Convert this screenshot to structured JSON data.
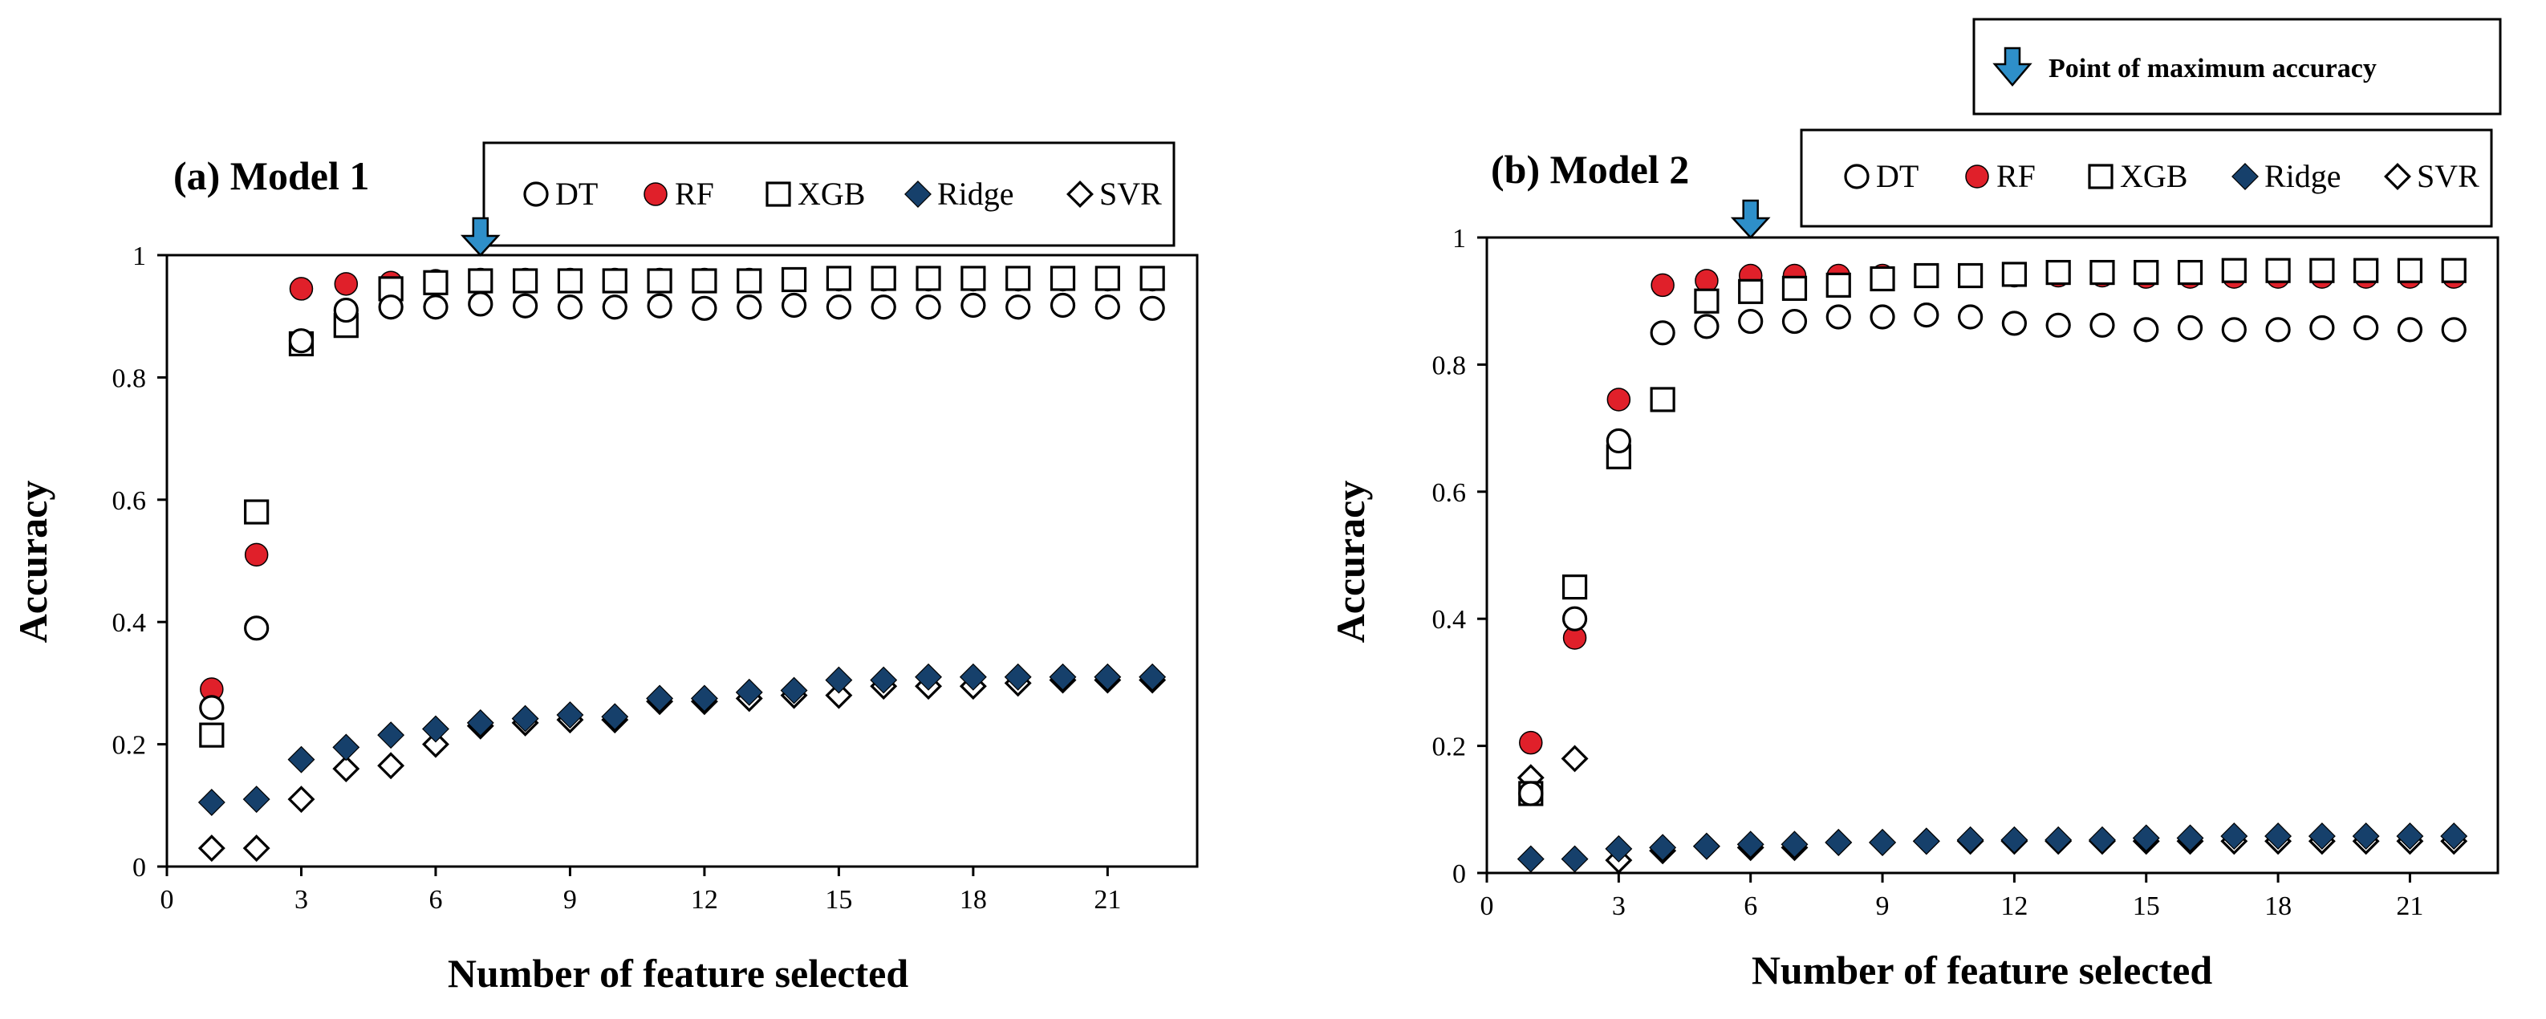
{
  "colors": {
    "rf_fill": "#e0202a",
    "ridge_fill": "#16406b",
    "arrow_fill": "#2e8fc9",
    "axis": "#000000",
    "marker_stroke": "#000000"
  },
  "global_legend": {
    "label": "Point of maximum accuracy",
    "icon": "down-arrow-icon"
  },
  "chart_data": [
    {
      "type": "scatter",
      "title": "(a) Model 1",
      "xlabel": "Number of feature selected",
      "ylabel": "Accuracy",
      "xlim": [
        0,
        23
      ],
      "ylim": [
        0,
        1
      ],
      "xticks": [
        0,
        3,
        6,
        9,
        12,
        15,
        18,
        21
      ],
      "xtick_labels": [
        "0",
        "3",
        "6",
        "9",
        "12",
        "15",
        "18",
        "21"
      ],
      "yticks": [
        0,
        0.2,
        0.4,
        0.6,
        0.8,
        1
      ],
      "ytick_labels": [
        "0",
        "0.2",
        "0.4",
        "0.6",
        "0.8",
        "1"
      ],
      "max_point_x": 7,
      "max_point_y": 1,
      "x": [
        1,
        2,
        3,
        4,
        5,
        6,
        7,
        8,
        9,
        10,
        11,
        12,
        13,
        14,
        15,
        16,
        17,
        18,
        19,
        20,
        21,
        22
      ],
      "series": [
        {
          "name": "DT",
          "marker": "circle-open",
          "values": [
            0.26,
            0.39,
            0.86,
            0.91,
            0.915,
            0.915,
            0.92,
            0.917,
            0.915,
            0.915,
            0.917,
            0.913,
            0.915,
            0.918,
            0.915,
            0.915,
            0.915,
            0.918,
            0.915,
            0.918,
            0.915,
            0.913
          ]
        },
        {
          "name": "RF",
          "marker": "circle-red",
          "values": [
            0.29,
            0.51,
            0.945,
            0.953,
            0.955,
            0.958,
            0.96,
            0.96,
            0.96,
            0.96,
            0.96,
            0.96,
            0.96,
            0.96,
            0.96,
            0.96,
            0.96,
            0.96,
            0.96,
            0.96,
            0.96,
            0.96
          ]
        },
        {
          "name": "XGB",
          "marker": "square-open",
          "values": [
            0.215,
            0.58,
            0.855,
            0.885,
            0.945,
            0.955,
            0.958,
            0.958,
            0.958,
            0.958,
            0.958,
            0.958,
            0.958,
            0.96,
            0.962,
            0.962,
            0.962,
            0.962,
            0.962,
            0.962,
            0.962,
            0.962
          ]
        },
        {
          "name": "Ridge",
          "marker": "diamond-blue",
          "values": [
            0.105,
            0.11,
            0.175,
            0.195,
            0.215,
            0.225,
            0.235,
            0.242,
            0.248,
            0.245,
            0.275,
            0.275,
            0.285,
            0.288,
            0.305,
            0.305,
            0.31,
            0.31,
            0.31,
            0.31,
            0.31,
            0.31
          ]
        },
        {
          "name": "SVR",
          "marker": "diamond-open",
          "values": [
            0.03,
            0.03,
            0.11,
            0.16,
            0.165,
            0.2,
            0.23,
            0.235,
            0.24,
            0.24,
            0.27,
            0.27,
            0.275,
            0.28,
            0.28,
            0.295,
            0.295,
            0.295,
            0.3,
            0.305,
            0.305,
            0.305
          ]
        }
      ]
    },
    {
      "type": "scatter",
      "title": "(b) Model 2",
      "xlabel": "Number of feature selected",
      "ylabel": "Accuracy",
      "xlim": [
        0,
        23
      ],
      "ylim": [
        0,
        1
      ],
      "xticks": [
        0,
        3,
        6,
        9,
        12,
        15,
        18,
        21
      ],
      "xtick_labels": [
        "0",
        "3",
        "6",
        "9",
        "12",
        "15",
        "18",
        "21"
      ],
      "yticks": [
        0,
        0.2,
        0.4,
        0.6,
        0.8,
        1
      ],
      "ytick_labels": [
        "0",
        "0.2",
        "0.4",
        "0.6",
        "0.8",
        "1"
      ],
      "max_point_x": 6,
      "max_point_y": 1,
      "x": [
        1,
        2,
        3,
        4,
        5,
        6,
        7,
        8,
        9,
        10,
        11,
        12,
        13,
        14,
        15,
        16,
        17,
        18,
        19,
        20,
        21,
        22
      ],
      "series": [
        {
          "name": "DT",
          "marker": "circle-open",
          "values": [
            0.125,
            0.4,
            0.68,
            0.85,
            0.86,
            0.868,
            0.868,
            0.875,
            0.875,
            0.878,
            0.875,
            0.865,
            0.862,
            0.862,
            0.855,
            0.858,
            0.855,
            0.855,
            0.858,
            0.858,
            0.855,
            0.855
          ]
        },
        {
          "name": "RF",
          "marker": "circle-red",
          "values": [
            0.205,
            0.37,
            0.745,
            0.925,
            0.932,
            0.94,
            0.94,
            0.94,
            0.94,
            0.94,
            0.94,
            0.94,
            0.94,
            0.94,
            0.938,
            0.938,
            0.938,
            0.938,
            0.938,
            0.938,
            0.938,
            0.938
          ]
        },
        {
          "name": "XGB",
          "marker": "square-open",
          "values": [
            0.125,
            0.45,
            0.655,
            0.745,
            0.9,
            0.915,
            0.92,
            0.925,
            0.935,
            0.94,
            0.94,
            0.942,
            0.945,
            0.945,
            0.945,
            0.945,
            0.948,
            0.948,
            0.948,
            0.948,
            0.948,
            0.948
          ]
        },
        {
          "name": "Ridge",
          "marker": "diamond-blue",
          "values": [
            0.022,
            0.022,
            0.038,
            0.04,
            0.042,
            0.045,
            0.045,
            0.048,
            0.048,
            0.05,
            0.052,
            0.052,
            0.052,
            0.052,
            0.055,
            0.055,
            0.058,
            0.058,
            0.058,
            0.058,
            0.058,
            0.058
          ]
        },
        {
          "name": "SVR",
          "marker": "diamond-open",
          "values": [
            0.15,
            0.18,
            0.02,
            0.035,
            0.042,
            0.04,
            0.04,
            0.048,
            0.048,
            0.05,
            0.05,
            0.05,
            0.05,
            0.05,
            0.05,
            0.05,
            0.05,
            0.05,
            0.05,
            0.05,
            0.05,
            0.05
          ]
        }
      ]
    }
  ]
}
